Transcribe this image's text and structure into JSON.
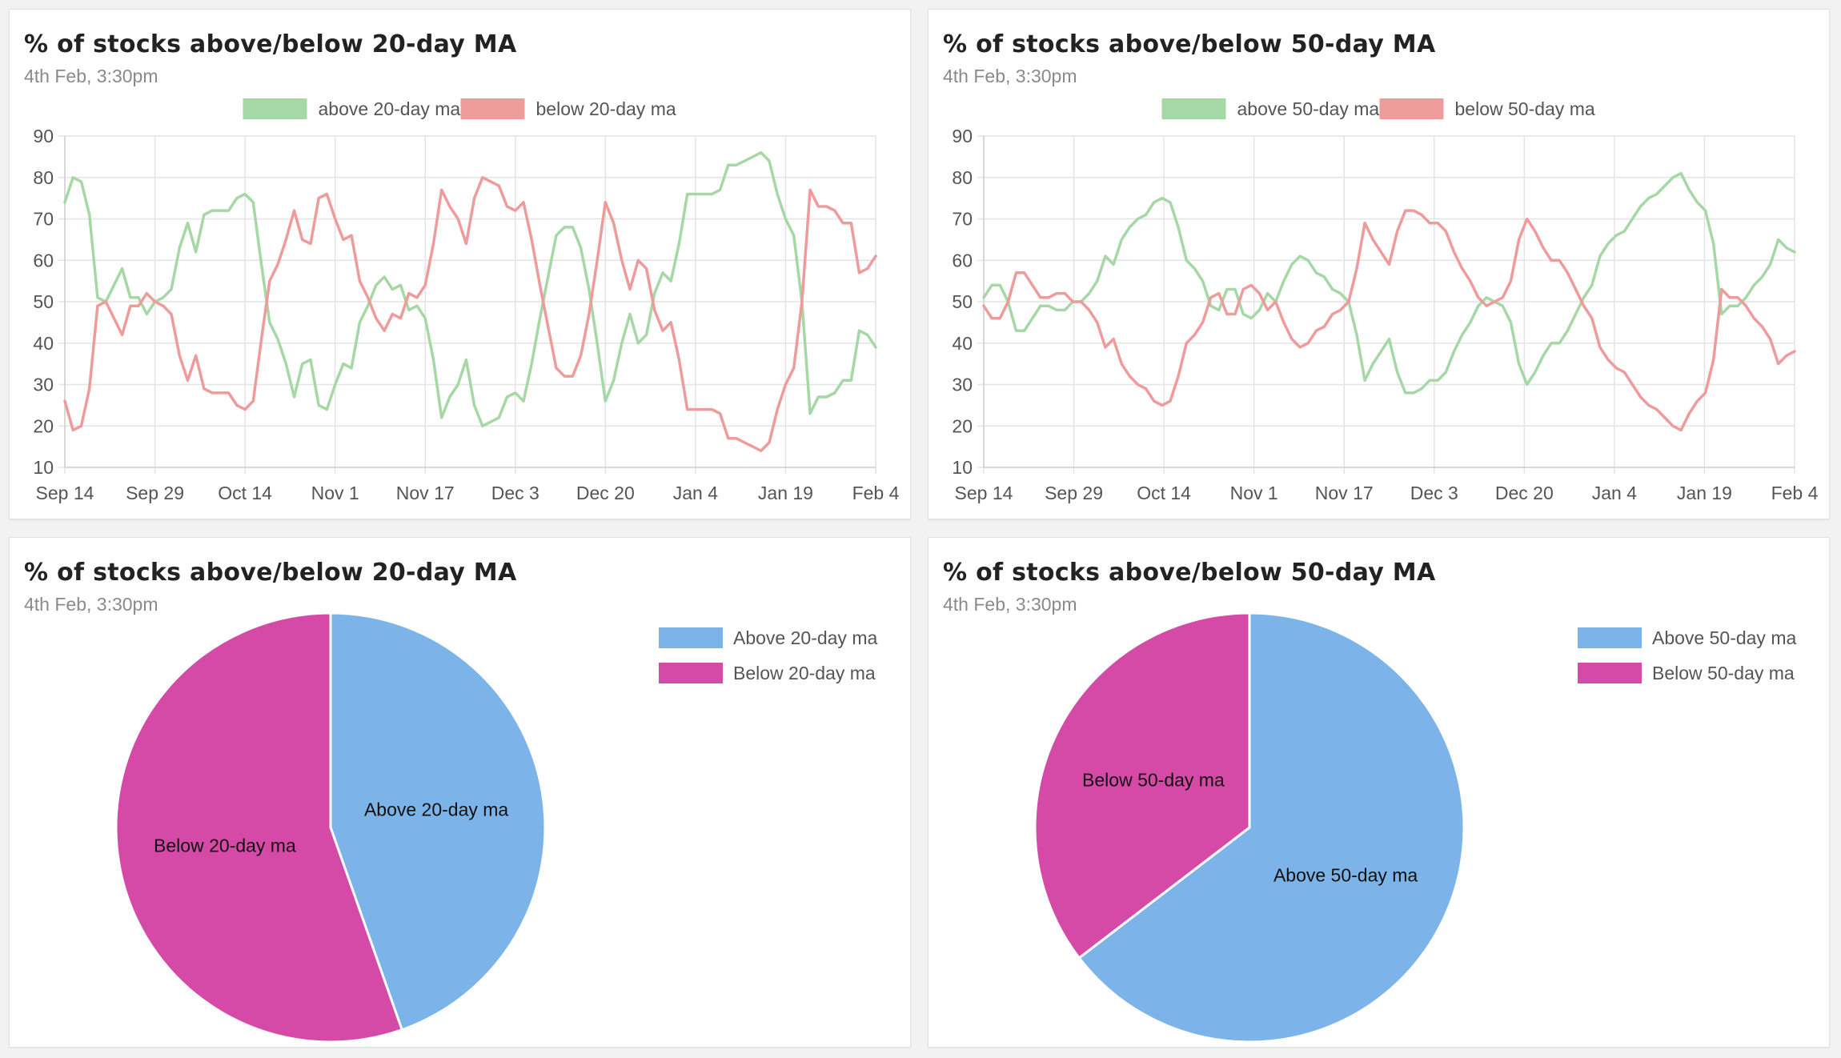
{
  "colors": {
    "above_line": "#a6d8a6",
    "below_line": "#ee9b9b",
    "above_pie": "#7cb4ea",
    "below_pie": "#d54aa7",
    "grid": "#e4e4e4",
    "axis_text": "#555555"
  },
  "chart_data": [
    {
      "type": "line",
      "title": "% of stocks above/below 20-day MA",
      "subtitle": "4th Feb, 3:30pm",
      "ylim": [
        10,
        90
      ],
      "yticks": [
        "10",
        "20",
        "30",
        "40",
        "50",
        "60",
        "70",
        "80",
        "90"
      ],
      "xticks": [
        "Sep 14",
        "Sep 29",
        "Oct 14",
        "Nov 1",
        "Nov 17",
        "Dec 3",
        "Dec 20",
        "Jan 4",
        "Jan 19",
        "Feb 4"
      ],
      "grid": true,
      "legend_position": "top",
      "series": [
        {
          "name": "above 20-day ma",
          "color": "above_line",
          "values": [
            74,
            80,
            79,
            71,
            51,
            50,
            54,
            58,
            51,
            51,
            47,
            50,
            51,
            53,
            63,
            69,
            62,
            71,
            72,
            72,
            72,
            75,
            76,
            74,
            59,
            45,
            41,
            35,
            27,
            35,
            36,
            25,
            24,
            30,
            35,
            34,
            45,
            49,
            54,
            56,
            53,
            54,
            48,
            49,
            46,
            36,
            22,
            27,
            30,
            36,
            25,
            20,
            21,
            22,
            27,
            28,
            26,
            35,
            46,
            56,
            66,
            68,
            68,
            63,
            53,
            40,
            26,
            31,
            40,
            47,
            40,
            42,
            52,
            57,
            55,
            64,
            76,
            76,
            76,
            76,
            77,
            83,
            83,
            84,
            85,
            86,
            84,
            76,
            70,
            66,
            50,
            23,
            27,
            27,
            28,
            31,
            31,
            43,
            42,
            39
          ]
        },
        {
          "name": "below 20-day ma",
          "color": "below_line",
          "values": [
            26,
            19,
            20,
            29,
            49,
            50,
            46,
            42,
            49,
            49,
            52,
            50,
            49,
            47,
            37,
            31,
            37,
            29,
            28,
            28,
            28,
            25,
            24,
            26,
            41,
            55,
            59,
            65,
            72,
            65,
            64,
            75,
            76,
            70,
            65,
            66,
            55,
            51,
            46,
            43,
            47,
            46,
            52,
            51,
            54,
            64,
            77,
            73,
            70,
            64,
            75,
            80,
            79,
            78,
            73,
            72,
            74,
            65,
            54,
            44,
            34,
            32,
            32,
            37,
            47,
            60,
            74,
            69,
            60,
            53,
            60,
            58,
            48,
            43,
            45,
            36,
            24,
            24,
            24,
            24,
            23,
            17,
            17,
            16,
            15,
            14,
            16,
            24,
            30,
            34,
            50,
            77,
            73,
            73,
            72,
            69,
            69,
            57,
            58,
            61
          ]
        }
      ]
    },
    {
      "type": "line",
      "title": "% of stocks above/below 50-day MA",
      "subtitle": "4th Feb, 3:30pm",
      "ylim": [
        10,
        90
      ],
      "yticks": [
        "10",
        "20",
        "30",
        "40",
        "50",
        "60",
        "70",
        "80",
        "90"
      ],
      "xticks": [
        "Sep 14",
        "Sep 29",
        "Oct 14",
        "Nov 1",
        "Nov 17",
        "Dec 3",
        "Dec 20",
        "Jan 4",
        "Jan 19",
        "Feb 4"
      ],
      "grid": true,
      "legend_position": "top",
      "series": [
        {
          "name": "above 50-day ma",
          "color": "above_line",
          "values": [
            51,
            54,
            54,
            50,
            43,
            43,
            46,
            49,
            49,
            48,
            48,
            50,
            50,
            52,
            55,
            61,
            59,
            65,
            68,
            70,
            71,
            74,
            75,
            74,
            68,
            60,
            58,
            55,
            49,
            48,
            53,
            53,
            47,
            46,
            48,
            52,
            50,
            55,
            59,
            61,
            60,
            57,
            56,
            53,
            52,
            50,
            42,
            31,
            35,
            38,
            41,
            33,
            28,
            28,
            29,
            31,
            31,
            33,
            38,
            42,
            45,
            49,
            51,
            50,
            49,
            45,
            35,
            30,
            33,
            37,
            40,
            40,
            43,
            47,
            51,
            54,
            61,
            64,
            66,
            67,
            70,
            73,
            75,
            76,
            78,
            80,
            81,
            77,
            74,
            72,
            64,
            47,
            49,
            49,
            51,
            54,
            56,
            59,
            65,
            63,
            62
          ]
        },
        {
          "name": "below 50-day ma",
          "color": "below_line",
          "values": [
            49,
            46,
            46,
            50,
            57,
            57,
            54,
            51,
            51,
            52,
            52,
            50,
            50,
            48,
            45,
            39,
            41,
            35,
            32,
            30,
            29,
            26,
            25,
            26,
            32,
            40,
            42,
            45,
            51,
            52,
            47,
            47,
            53,
            54,
            52,
            48,
            50,
            45,
            41,
            39,
            40,
            43,
            44,
            47,
            48,
            50,
            58,
            69,
            65,
            62,
            59,
            67,
            72,
            72,
            71,
            69,
            69,
            67,
            62,
            58,
            55,
            51,
            49,
            50,
            51,
            55,
            65,
            70,
            67,
            63,
            60,
            60,
            57,
            53,
            49,
            46,
            39,
            36,
            34,
            33,
            30,
            27,
            25,
            24,
            22,
            20,
            19,
            23,
            26,
            28,
            36,
            53,
            51,
            51,
            49,
            46,
            44,
            41,
            35,
            37,
            38
          ]
        }
      ]
    },
    {
      "type": "pie",
      "title": "% of stocks above/below 20-day MA",
      "subtitle": "4th Feb, 3:30pm",
      "legend_position": "top-right",
      "labels": [
        "Above 20-day ma",
        "Below 20-day ma"
      ],
      "values": [
        44.6,
        55.4
      ],
      "colors": [
        "above_pie",
        "below_pie"
      ]
    },
    {
      "type": "pie",
      "title": "% of stocks above/below 50-day MA",
      "subtitle": "4th Feb, 3:30pm",
      "legend_position": "top-right",
      "labels": [
        "Above 50-day ma",
        "Below 50-day ma"
      ],
      "values": [
        64.6,
        35.4
      ],
      "colors": [
        "above_pie",
        "below_pie"
      ]
    }
  ]
}
